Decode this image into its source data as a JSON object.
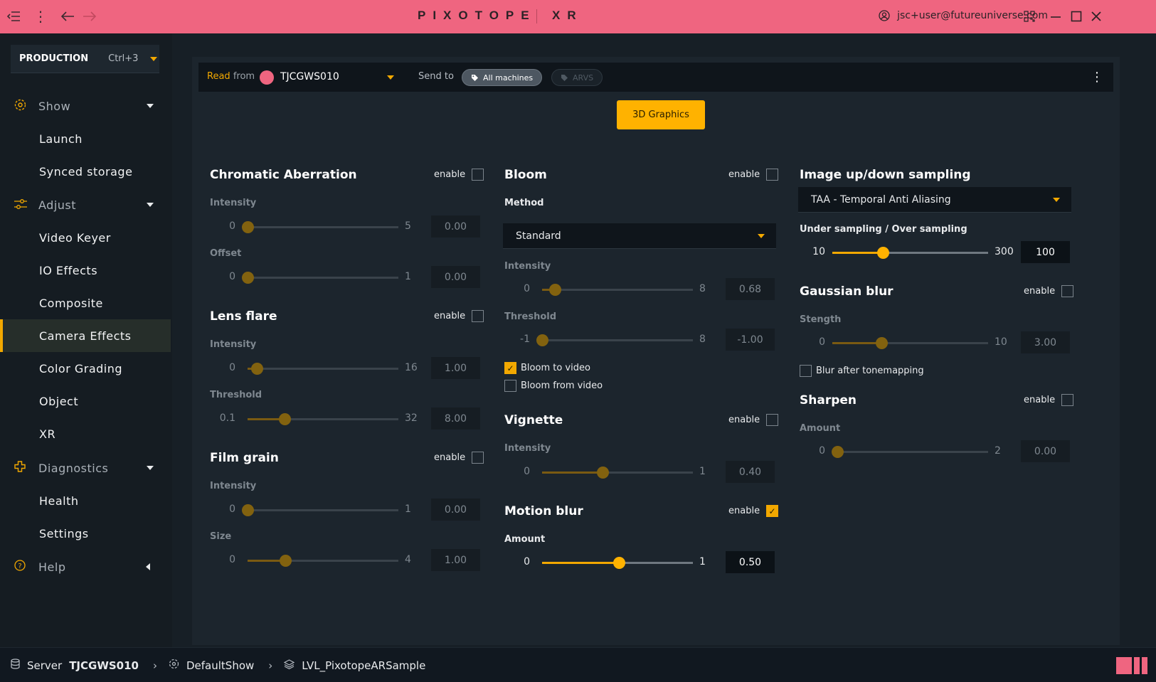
{
  "app": {
    "logo_left": "PIXOTOPE",
    "logo_right": "XR",
    "user_email": "jsc+user@futureuniverse.com",
    "colors": {
      "accent": "#f2a800",
      "topbar": "#ef6580"
    }
  },
  "sidebar": {
    "production_name": "PRODUCTION",
    "production_shortcut": "Ctrl+3",
    "groups": {
      "show": "Show",
      "adjust": "Adjust",
      "diagnostics": "Diagnostics",
      "help": "Help"
    },
    "items": {
      "launch": "Launch",
      "synced_storage": "Synced storage",
      "video_keyer": "Video Keyer",
      "io_effects": "IO Effects",
      "composite": "Composite",
      "camera_effects": "Camera Effects",
      "color_grading": "Color Grading",
      "object": "Object",
      "xr": "XR",
      "health": "Health",
      "settings": "Settings"
    },
    "active_item": "Camera Effects"
  },
  "toolbar": {
    "read_word": "Read",
    "from_word": "from",
    "source": "TJCGWS010",
    "send_to": "Send to",
    "chip_all": "All machines",
    "chip_arvs": "ARVS"
  },
  "tab": {
    "label": "3D Graphics"
  },
  "common": {
    "enable": "enable"
  },
  "chromatic": {
    "title": "Chromatic Aberration",
    "intensity": {
      "label": "Intensity",
      "min": "0",
      "max": "5",
      "value": "0.00"
    },
    "offset": {
      "label": "Offset",
      "min": "0",
      "max": "1",
      "value": "0.00"
    }
  },
  "lens": {
    "title": "Lens flare",
    "intensity": {
      "label": "Intensity",
      "min": "0",
      "max": "16",
      "value": "1.00"
    },
    "threshold": {
      "label": "Threshold",
      "min": "0.1",
      "max": "32",
      "value": "8.00"
    }
  },
  "grain": {
    "title": "Film grain",
    "intensity": {
      "label": "Intensity",
      "min": "0",
      "max": "1",
      "value": "0.00"
    },
    "size": {
      "label": "Size",
      "min": "0",
      "max": "4",
      "value": "1.00"
    }
  },
  "bloom": {
    "title": "Bloom",
    "method_label": "Method",
    "method_value": "Standard",
    "intensity": {
      "label": "Intensity",
      "min": "0",
      "max": "8",
      "value": "0.68"
    },
    "threshold": {
      "label": "Threshold",
      "min": "-1",
      "max": "8",
      "value": "-1.00"
    },
    "to_video": "Bloom to video",
    "from_video": "Bloom from video"
  },
  "vignette": {
    "title": "Vignette",
    "intensity": {
      "label": "Intensity",
      "min": "0",
      "max": "1",
      "value": "0.40"
    }
  },
  "motion": {
    "title": "Motion blur",
    "amount": {
      "label": "Amount",
      "min": "0",
      "max": "1",
      "value": "0.50"
    }
  },
  "sampling": {
    "title": "Image up/down sampling",
    "mode": "TAA - Temporal Anti Aliasing",
    "range_label": "Under sampling / Over sampling",
    "range": {
      "min": "10",
      "max": "300",
      "value": "100"
    }
  },
  "gaussian": {
    "title": "Gaussian blur",
    "strength": {
      "label": "Stength",
      "min": "0",
      "max": "10",
      "value": "3.00"
    },
    "after_tonemapping": "Blur after tonemapping"
  },
  "sharpen": {
    "title": "Sharpen",
    "amount": {
      "label": "Amount",
      "min": "0",
      "max": "2",
      "value": "0.00"
    }
  },
  "statusbar": {
    "server_label": "Server",
    "server_name": "TJCGWS010",
    "show": "DefaultShow",
    "level": "LVL_PixotopeARSample"
  }
}
